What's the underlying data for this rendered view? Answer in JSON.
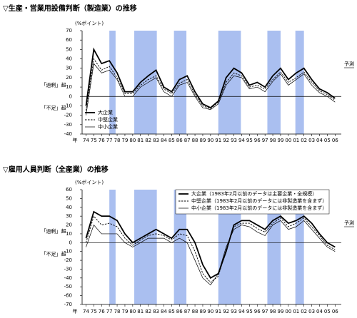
{
  "chart_data": [
    {
      "type": "line",
      "title": "▽生産・営業用設備判断（製造業）の推移",
      "annotations": {
        "unit": "(%ポイント)",
        "excess": "「過剰」超",
        "shortage": "「不足」超",
        "forecast": "予測",
        "year": "年"
      },
      "x": [
        1974,
        1975,
        1976,
        1977,
        1978,
        1979,
        1980,
        1981,
        1982,
        1983,
        1984,
        1985,
        1986,
        1987,
        1988,
        1989,
        1990,
        1991,
        1992,
        1993,
        1994,
        1995,
        1996,
        1997,
        1998,
        1999,
        2000,
        2001,
        2002,
        2003,
        2004,
        2005,
        2006
      ],
      "series": [
        {
          "name": "大企業",
          "color": "#000000",
          "line_style": "thick",
          "values": [
            -10,
            50,
            35,
            38,
            25,
            5,
            5,
            15,
            22,
            28,
            10,
            5,
            18,
            22,
            5,
            -8,
            -12,
            -5,
            20,
            30,
            25,
            12,
            15,
            10,
            22,
            30,
            18,
            25,
            30,
            18,
            8,
            4,
            -2
          ]
        },
        {
          "name": "中堅企業",
          "color": "#000000",
          "line_style": "dashed",
          "values": [
            -15,
            40,
            28,
            32,
            20,
            3,
            3,
            12,
            18,
            22,
            8,
            3,
            14,
            18,
            2,
            -10,
            -13,
            -6,
            15,
            25,
            22,
            10,
            12,
            8,
            18,
            26,
            15,
            20,
            26,
            15,
            6,
            2,
            -4
          ]
        },
        {
          "name": "中小企業",
          "color": "#000000",
          "line_style": "thin",
          "values": [
            -20,
            35,
            25,
            28,
            18,
            0,
            0,
            10,
            15,
            20,
            5,
            0,
            12,
            15,
            0,
            -12,
            -14,
            -8,
            12,
            22,
            20,
            8,
            10,
            5,
            16,
            24,
            12,
            18,
            24,
            12,
            4,
            0,
            -6
          ]
        }
      ],
      "recession_bands": [
        [
          1977,
          1977.8
        ],
        [
          1980.2,
          1983.1
        ],
        [
          1985.3,
          1986.9
        ],
        [
          1991,
          1993.9
        ],
        [
          1997.3,
          1999
        ],
        [
          2000.9,
          2002
        ]
      ],
      "xlim": [
        1973.5,
        2006.8
      ],
      "xticks": [
        {
          "value": 1974,
          "label": "74"
        },
        {
          "value": 1975,
          "label": "75"
        },
        {
          "value": 1976,
          "label": "76"
        },
        {
          "value": 1977,
          "label": "77"
        },
        {
          "value": 1978,
          "label": "78"
        },
        {
          "value": 1979,
          "label": "79"
        },
        {
          "value": 1980,
          "label": "80"
        },
        {
          "value": 1981,
          "label": "81"
        },
        {
          "value": 1982,
          "label": "82"
        },
        {
          "value": 1983,
          "label": "83"
        },
        {
          "value": 1984,
          "label": "84"
        },
        {
          "value": 1985,
          "label": "85"
        },
        {
          "value": 1986,
          "label": "86"
        },
        {
          "value": 1987,
          "label": "87"
        },
        {
          "value": 1988,
          "label": "88"
        },
        {
          "value": 1989,
          "label": "89"
        },
        {
          "value": 1990,
          "label": "90"
        },
        {
          "value": 1991,
          "label": "91"
        },
        {
          "value": 1992,
          "label": "92"
        },
        {
          "value": 1993,
          "label": "93"
        },
        {
          "value": 1994,
          "label": "94"
        },
        {
          "value": 1995,
          "label": "95"
        },
        {
          "value": 1996,
          "label": "96"
        },
        {
          "value": 1997,
          "label": "97"
        },
        {
          "value": 1998,
          "label": "98"
        },
        {
          "value": 1999,
          "label": "99"
        },
        {
          "value": 2000,
          "label": "00"
        },
        {
          "value": 2001,
          "label": "01"
        },
        {
          "value": 2002,
          "label": "02"
        },
        {
          "value": 2003,
          "label": "03"
        },
        {
          "value": 2004,
          "label": "04"
        },
        {
          "value": 2005,
          "label": "05"
        },
        {
          "value": 2006,
          "label": "06"
        }
      ],
      "ylim": [
        -40,
        70
      ],
      "yticks": [
        -40,
        -30,
        -20,
        -10,
        0,
        10,
        20,
        30,
        40,
        50,
        60,
        70
      ],
      "legend": "lower-left"
    },
    {
      "type": "line",
      "title": "▽雇用人員判断（全産業）の推移",
      "annotations": {
        "unit": "(%ポイント)",
        "excess": "「過剰」超",
        "shortage": "「不足」超",
        "forecast": "予測",
        "year": "年"
      },
      "x": [
        1974,
        1975,
        1976,
        1977,
        1978,
        1979,
        1980,
        1981,
        1982,
        1983,
        1984,
        1985,
        1986,
        1987,
        1988,
        1989,
        1990,
        1991,
        1992,
        1993,
        1994,
        1995,
        1996,
        1997,
        1998,
        1999,
        2000,
        2001,
        2002,
        2003,
        2004,
        2005,
        2006
      ],
      "series": [
        {
          "name": "大企業（1983年2月以前のデータは主要企業・全規模）",
          "color": "#000000",
          "line_style": "thick",
          "values": [
            5,
            35,
            30,
            30,
            25,
            10,
            0,
            5,
            10,
            15,
            10,
            5,
            15,
            15,
            0,
            -25,
            -40,
            -35,
            -10,
            20,
            25,
            25,
            20,
            15,
            25,
            30,
            22,
            25,
            30,
            22,
            10,
            0,
            -5
          ]
        },
        {
          "name": "中堅企業（1983年2月以前のデータには非製造業を含まず）",
          "color": "#000000",
          "line_style": "dashed",
          "values": [
            0,
            30,
            20,
            22,
            18,
            5,
            -3,
            3,
            8,
            10,
            8,
            3,
            10,
            8,
            -10,
            -35,
            -45,
            -38,
            -8,
            18,
            22,
            22,
            16,
            12,
            22,
            28,
            18,
            22,
            28,
            18,
            8,
            -3,
            -8
          ]
        },
        {
          "name": "中小企業（1983年2月以前のデータには非製造業を含まず）",
          "color": "#000000",
          "line_style": "thin",
          "values": [
            -5,
            20,
            10,
            10,
            10,
            0,
            -5,
            0,
            5,
            5,
            5,
            0,
            5,
            0,
            -20,
            -40,
            -48,
            -35,
            -5,
            15,
            20,
            18,
            12,
            8,
            20,
            25,
            15,
            18,
            25,
            15,
            5,
            -5,
            -10
          ]
        }
      ],
      "recession_bands": [
        [
          1977,
          1977.8
        ],
        [
          1980.2,
          1983.1
        ],
        [
          1985.3,
          1986.9
        ],
        [
          1991,
          1993.9
        ],
        [
          1997.3,
          1999
        ],
        [
          2000.9,
          2002
        ]
      ],
      "xlim": [
        1973.5,
        2006.8
      ],
      "xticks": [
        {
          "value": 1974,
          "label": "74"
        },
        {
          "value": 1975,
          "label": "75"
        },
        {
          "value": 1976,
          "label": "76"
        },
        {
          "value": 1977,
          "label": "77"
        },
        {
          "value": 1978,
          "label": "78"
        },
        {
          "value": 1979,
          "label": "79"
        },
        {
          "value": 1980,
          "label": "80"
        },
        {
          "value": 1981,
          "label": "81"
        },
        {
          "value": 1982,
          "label": "82"
        },
        {
          "value": 1983,
          "label": "83"
        },
        {
          "value": 1984,
          "label": "84"
        },
        {
          "value": 1985,
          "label": "85"
        },
        {
          "value": 1986,
          "label": "86"
        },
        {
          "value": 1987,
          "label": "87"
        },
        {
          "value": 1988,
          "label": "88"
        },
        {
          "value": 1989,
          "label": "89"
        },
        {
          "value": 1990,
          "label": "90"
        },
        {
          "value": 1991,
          "label": "91"
        },
        {
          "value": 1992,
          "label": "92"
        },
        {
          "value": 1993,
          "label": "93"
        },
        {
          "value": 1994,
          "label": "94"
        },
        {
          "value": 1995,
          "label": "95"
        },
        {
          "value": 1996,
          "label": "96"
        },
        {
          "value": 1997,
          "label": "97"
        },
        {
          "value": 1998,
          "label": "98"
        },
        {
          "value": 1999,
          "label": "99"
        },
        {
          "value": 2000,
          "label": "00"
        },
        {
          "value": 2001,
          "label": "01"
        },
        {
          "value": 2002,
          "label": "02"
        },
        {
          "value": 2003,
          "label": "03"
        },
        {
          "value": 2004,
          "label": "04"
        },
        {
          "value": 2005,
          "label": "05"
        },
        {
          "value": 2006,
          "label": "06"
        }
      ],
      "ylim": [
        -70,
        60
      ],
      "yticks": [
        -70,
        -60,
        -50,
        -40,
        -30,
        -20,
        -10,
        0,
        10,
        20,
        30,
        40,
        50,
        60
      ],
      "legend": "upper-right"
    }
  ]
}
